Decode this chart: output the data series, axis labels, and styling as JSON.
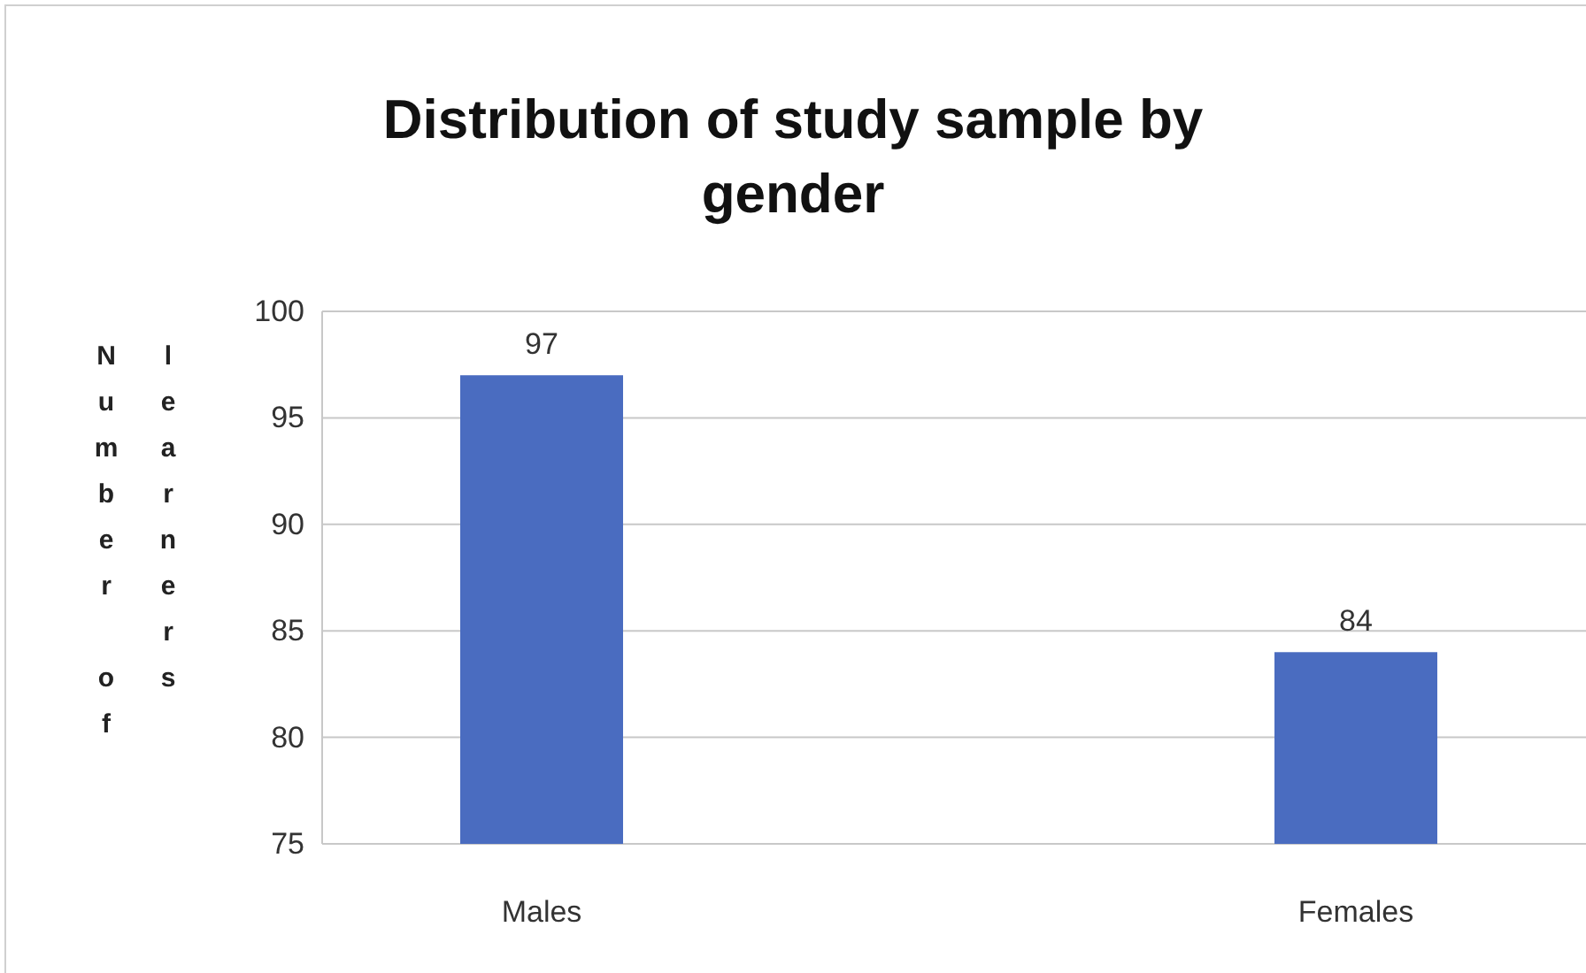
{
  "chart_data": {
    "type": "bar",
    "title": "Distribution of study sample by gender",
    "ylabel": "Number of learners",
    "categories": [
      "Males",
      "Females"
    ],
    "values": [
      97,
      84
    ],
    "color": "#4a6cc0",
    "ylim": [
      75,
      100
    ],
    "yticks": [
      75,
      80,
      85,
      90,
      95,
      100
    ],
    "grid": "y",
    "data_labels": true
  }
}
